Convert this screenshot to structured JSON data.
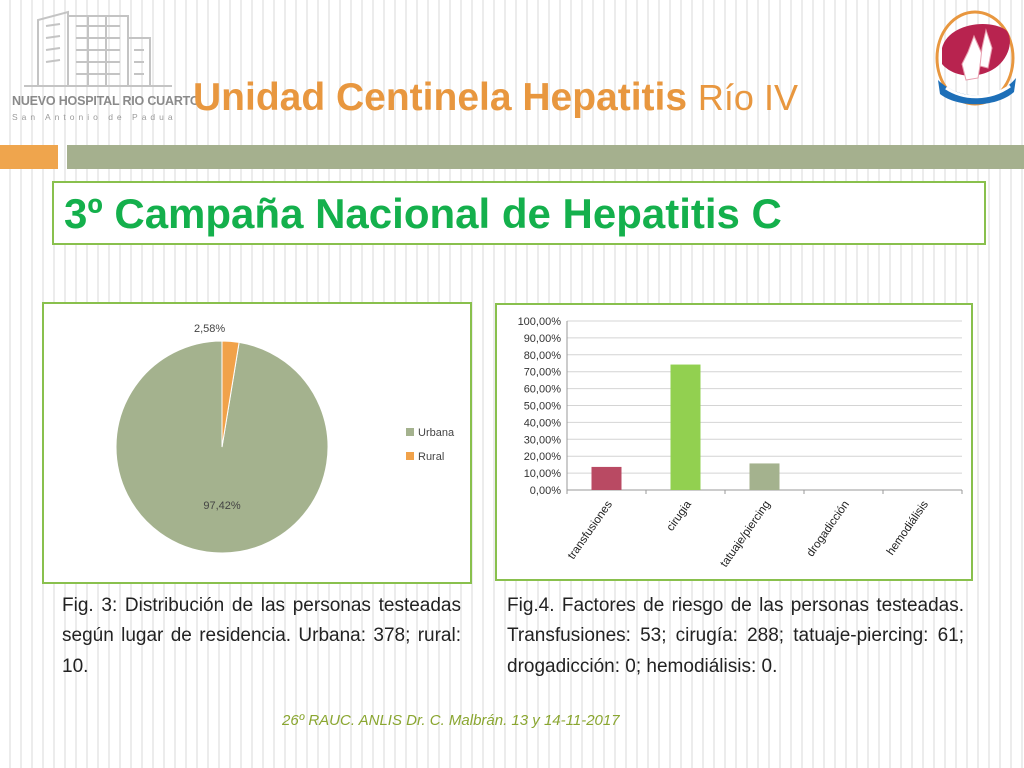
{
  "header": {
    "hospital_logo": {
      "name": "NUEVO HOSPITAL RIO CUARTO",
      "subtitle": "San Antonio de Padua"
    },
    "title_main": "Unidad Centinela Hepatitis",
    "title_suffix": "Río IV",
    "title_color": "#e8973f"
  },
  "accent_colors": {
    "orange": "#efa54d",
    "green_bar": "#a5b08e",
    "frame_green": "#89c04d",
    "campaign_text": "#14b04c",
    "footer_text": "#8aa630"
  },
  "campaign_title": "3º Campaña Nacional de Hepatitis C",
  "chart_data": [
    {
      "type": "pie",
      "categories": [
        "Urbana",
        "Rural"
      ],
      "values": [
        97.42,
        2.58
      ],
      "data_labels": [
        "97,42%",
        "2,58%"
      ],
      "colors": [
        "#a4b28e",
        "#f1a24a"
      ],
      "legend_position": "right",
      "title": ""
    },
    {
      "type": "bar",
      "categories": [
        "transfusiones",
        "cirugia",
        "tatuaje/piercing",
        "drogadicción",
        "hemodiálisis"
      ],
      "values": [
        13.66,
        74.23,
        15.72,
        0,
        0
      ],
      "colors": [
        "#b94a63",
        "#92d050",
        "#a4b28e",
        "#f1a24a",
        "#a4b28e"
      ],
      "ylim": [
        0,
        100
      ],
      "yticks": [
        "0,00%",
        "10,00%",
        "20,00%",
        "30,00%",
        "40,00%",
        "50,00%",
        "60,00%",
        "70,00%",
        "80,00%",
        "90,00%",
        "100,00%"
      ],
      "grid": true,
      "title": "",
      "xlabel": "",
      "ylabel": ""
    }
  ],
  "captions": {
    "fig3": "Fig. 3: Distribución de las personas testeadas según lugar de residencia. Urbana: 378; rural: 10.",
    "fig4": "Fig.4. Factores de riesgo de las personas testeadas. Transfusiones: 53; cirugía: 288; tatuaje-piercing: 61; drogadicción: 0; hemodiálisis: 0."
  },
  "footer": "26º RAUC. ANLIS Dr. C. Malbrán. 13 y 14-11-2017"
}
